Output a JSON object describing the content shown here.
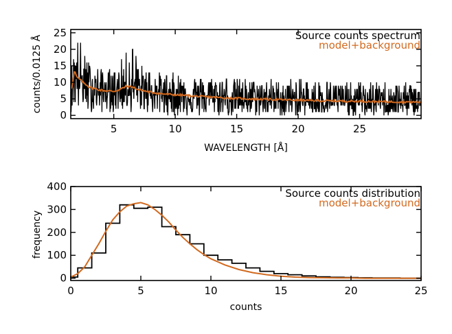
{
  "chart_data": [
    {
      "type": "line",
      "title": "",
      "xlabel": "WAVELENGTH [Å]",
      "ylabel": "counts/0.0125 Å",
      "xlim": [
        1.5,
        30
      ],
      "ylim": [
        -1,
        26
      ],
      "xticks": [
        5,
        10,
        15,
        20,
        25
      ],
      "yticks": [
        0,
        5,
        10,
        15,
        20,
        25
      ],
      "grid": false,
      "legend_position": "top-right",
      "legend": [
        {
          "label": "Source counts spectrum",
          "color": "#000000"
        },
        {
          "label": "model+background",
          "color": "#d2691e"
        }
      ],
      "series": [
        {
          "name": "Source counts spectrum",
          "kind": "noisy-counts",
          "color": "#000000",
          "x": [
            1.6,
            1.8,
            2.0,
            2.2,
            2.5,
            2.8,
            3.0,
            3.5,
            4.0,
            4.5,
            5.0,
            5.5,
            6.0,
            6.5,
            7.0,
            7.5,
            8.0,
            9.0,
            10.0,
            11.0,
            12.0,
            14.0,
            16.0,
            18.0,
            20.0,
            22.0,
            24.0,
            26.0,
            28.0,
            30.0
          ],
          "y_low": [
            1,
            2,
            2,
            1,
            2,
            1,
            1,
            1,
            1,
            1,
            1,
            1,
            1,
            1,
            1,
            1,
            1,
            0,
            0,
            0,
            0,
            0,
            0,
            0,
            0,
            0,
            0,
            0,
            0,
            0
          ],
          "y_high": [
            16,
            20,
            23,
            25,
            19,
            18,
            16,
            15,
            14,
            14,
            14,
            16,
            19,
            23,
            17,
            15,
            14,
            13,
            13,
            12,
            12,
            12,
            11,
            11,
            11,
            11,
            10,
            10,
            10,
            10
          ]
        },
        {
          "name": "model+background",
          "color": "#d2691e",
          "x": [
            1.6,
            1.8,
            2.0,
            2.2,
            2.5,
            2.8,
            3.0,
            3.5,
            4.0,
            4.5,
            5.0,
            5.5,
            6.0,
            6.5,
            7.0,
            7.5,
            8.0,
            9.0,
            10.0,
            11.0,
            12.0,
            14.0,
            16.0,
            18.0,
            20.0,
            22.0,
            24.0,
            26.0,
            28.0,
            30.0
          ],
          "y": [
            8.5,
            13.5,
            11.5,
            11.0,
            10.0,
            9.2,
            8.6,
            8.0,
            7.6,
            7.4,
            7.3,
            7.8,
            8.8,
            8.6,
            7.8,
            7.4,
            7.0,
            6.5,
            6.2,
            6.0,
            5.7,
            5.3,
            5.0,
            4.8,
            4.6,
            4.4,
            4.3,
            4.2,
            4.1,
            4.0
          ]
        }
      ]
    },
    {
      "type": "bar",
      "title": "",
      "xlabel": "counts",
      "ylabel": "frequency",
      "xlim": [
        0,
        25
      ],
      "ylim": [
        -10,
        400
      ],
      "xticks": [
        0,
        5,
        10,
        15,
        20,
        25
      ],
      "yticks": [
        0,
        100,
        200,
        300,
        400
      ],
      "grid": false,
      "legend_position": "top-right",
      "legend": [
        {
          "label": "Source counts distribution",
          "color": "#000000"
        },
        {
          "label": "model+background",
          "color": "#d2691e"
        }
      ],
      "series": [
        {
          "name": "Source counts distribution",
          "kind": "histogram",
          "color": "#000000",
          "bin_edges": [
            0,
            0.5,
            1.5,
            2.5,
            3.5,
            4.5,
            5.5,
            6.5,
            7.5,
            8.5,
            9.5,
            10.5,
            11.5,
            12.5,
            13.5,
            14.5,
            15.5,
            16.5,
            17.5,
            18.5,
            19.5,
            20.5,
            21.5,
            22.5,
            23.5,
            24.5,
            25
          ],
          "values": [
            5,
            45,
            110,
            240,
            320,
            305,
            310,
            225,
            190,
            150,
            100,
            80,
            65,
            45,
            30,
            20,
            15,
            10,
            6,
            4,
            3,
            2,
            1,
            1,
            0,
            0
          ]
        },
        {
          "name": "model+background",
          "color": "#d2691e",
          "x": [
            0,
            0.5,
            1,
            1.5,
            2,
            2.5,
            3,
            3.5,
            4,
            4.5,
            5,
            5.5,
            6,
            6.5,
            7,
            7.5,
            8,
            8.5,
            9,
            9.5,
            10,
            11,
            12,
            13,
            14,
            15,
            16,
            17,
            18,
            19,
            20,
            21,
            22,
            23,
            24,
            25
          ],
          "y": [
            5,
            20,
            50,
            100,
            150,
            205,
            255,
            290,
            315,
            325,
            330,
            320,
            300,
            275,
            245,
            210,
            178,
            150,
            125,
            103,
            85,
            58,
            38,
            24,
            15,
            9,
            5,
            3,
            2,
            1,
            1,
            0,
            0,
            0,
            0,
            0
          ]
        }
      ]
    }
  ]
}
